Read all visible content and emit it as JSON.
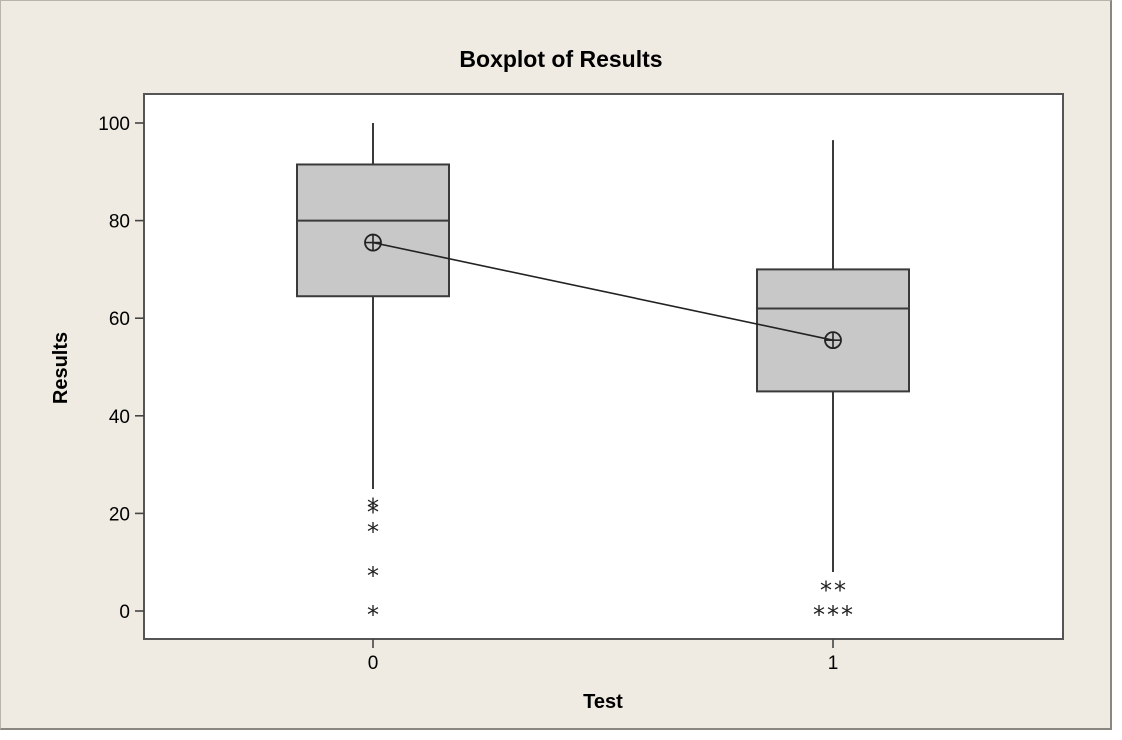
{
  "chart_data": {
    "type": "boxplot",
    "title": "Boxplot of Results",
    "xlabel": "Test",
    "ylabel": "Results",
    "ylim": [
      -6,
      106
    ],
    "yticks": [
      0,
      20,
      40,
      60,
      80,
      100
    ],
    "categories": [
      "0",
      "1"
    ],
    "boxes": [
      {
        "category": "0",
        "whisker_low": 25,
        "q1": 64.5,
        "median": 80,
        "q3": 91.5,
        "whisker_high": 100,
        "mean": 75.5,
        "outliers": [
          0,
          8,
          17,
          21,
          22
        ]
      },
      {
        "category": "1",
        "whisker_low": 8,
        "q1": 45,
        "median": 62,
        "q3": 70,
        "whisker_high": 96.5,
        "mean": 55.5,
        "outliers": [
          0,
          0,
          0,
          5,
          5
        ]
      }
    ],
    "mean_connect_line": true,
    "colors": {
      "box_fill": "#c8c8c8",
      "frame_bg": "#efebe2",
      "plot_bg": "#ffffff",
      "stroke": "#3a3a3a"
    }
  }
}
